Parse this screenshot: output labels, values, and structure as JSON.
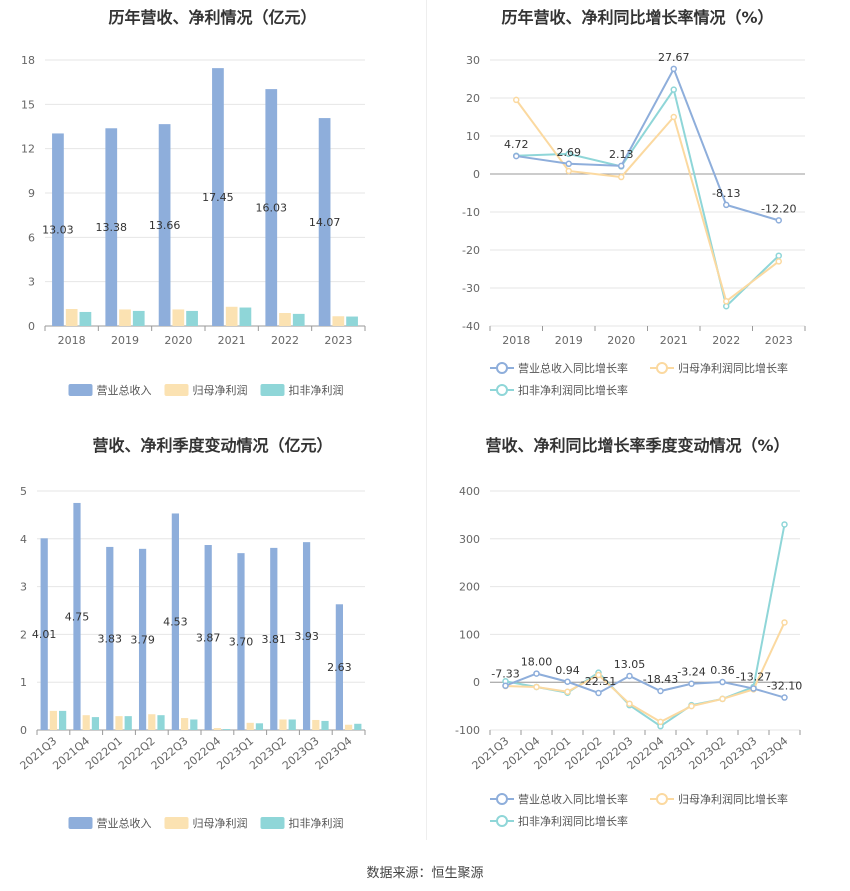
{
  "source_label": "数据来源：恒生聚源",
  "chart_data": [
    {
      "type": "bar",
      "title": "历年营收、净利情况（亿元）",
      "categories": [
        "2018",
        "2019",
        "2020",
        "2021",
        "2022",
        "2023"
      ],
      "series": [
        {
          "name": "营业总收入",
          "values": [
            13.03,
            13.38,
            13.66,
            17.45,
            16.03,
            14.07
          ],
          "color": "#8eaedb"
        },
        {
          "name": "归母净利润",
          "values": [
            1.15,
            1.12,
            1.12,
            1.3,
            0.88,
            0.66
          ],
          "color": "#fbe2b2"
        },
        {
          "name": "扣非净利润",
          "values": [
            0.95,
            1.02,
            1.02,
            1.25,
            0.82,
            0.64
          ],
          "color": "#8fd6d8"
        }
      ],
      "data_labels": [
        "13.03",
        "13.38",
        "13.66",
        "17.45",
        "16.03",
        "14.07"
      ],
      "y_ticks": [
        "0",
        "3",
        "6",
        "9",
        "12",
        "15",
        "18"
      ],
      "ylim": [
        0,
        18
      ],
      "legend": "bottom"
    },
    {
      "type": "line",
      "title": "历年营收、净利同比增长率情况（%）",
      "categories": [
        "2018",
        "2019",
        "2020",
        "2021",
        "2022",
        "2023"
      ],
      "series": [
        {
          "name": "营业总收入同比增长率",
          "values": [
            4.72,
            2.69,
            2.13,
            27.67,
            -8.13,
            -12.2
          ],
          "color": "#8eaedb"
        },
        {
          "name": "归母净利润同比增长率",
          "values": [
            19.5,
            0.8,
            -0.8,
            15.0,
            -33.5,
            -23.0
          ],
          "color": "#fbd9a0"
        },
        {
          "name": "扣非净利润同比增长率",
          "values": [
            4.8,
            5.3,
            2.0,
            22.2,
            -34.8,
            -21.5
          ],
          "color": "#8fd6d8"
        }
      ],
      "data_labels": [
        "4.72",
        "2.69",
        "2.13",
        "27.67",
        "-8.13",
        "-12.20"
      ],
      "y_ticks": [
        "-40",
        "-30",
        "-20",
        "-10",
        "0",
        "10",
        "20",
        "30"
      ],
      "ylim": [
        -40,
        30
      ],
      "legend": "bottom"
    },
    {
      "type": "bar",
      "title": "营收、净利季度变动情况（亿元）",
      "categories": [
        "2021Q3",
        "2021Q4",
        "2022Q1",
        "2022Q2",
        "2022Q3",
        "2022Q4",
        "2023Q1",
        "2023Q2",
        "2023Q3",
        "2023Q4"
      ],
      "series": [
        {
          "name": "营业总收入",
          "values": [
            4.01,
            4.75,
            3.83,
            3.79,
            4.53,
            3.87,
            3.7,
            3.81,
            3.93,
            2.63
          ],
          "color": "#8eaedb"
        },
        {
          "name": "归母净利润",
          "values": [
            0.4,
            0.31,
            0.29,
            0.33,
            0.25,
            0.04,
            0.15,
            0.22,
            0.21,
            0.11
          ],
          "color": "#fbe2b2"
        },
        {
          "name": "扣非净利润",
          "values": [
            0.4,
            0.27,
            0.29,
            0.31,
            0.22,
            0.02,
            0.14,
            0.22,
            0.19,
            0.13
          ],
          "color": "#8fd6d8"
        }
      ],
      "data_labels": [
        "4.01",
        "4.75",
        "3.83",
        "3.79",
        "4.53",
        "3.87",
        "3.70",
        "3.81",
        "3.93",
        "2.63"
      ],
      "y_ticks": [
        "0",
        "1",
        "2",
        "3",
        "4",
        "5"
      ],
      "ylim": [
        0,
        5
      ],
      "legend": "bottom"
    },
    {
      "type": "line",
      "title": "营收、净利同比增长率季度变动情况（%）",
      "categories": [
        "2021Q3",
        "2021Q4",
        "2022Q1",
        "2022Q2",
        "2022Q3",
        "2022Q4",
        "2023Q1",
        "2023Q2",
        "2023Q3",
        "2023Q4"
      ],
      "series": [
        {
          "name": "营业总收入同比增长率",
          "values": [
            -7.33,
            18.0,
            0.94,
            -22.51,
            13.05,
            -18.43,
            -3.24,
            0.36,
            -13.27,
            -32.1
          ],
          "color": "#8eaedb"
        },
        {
          "name": "归母净利润同比增长率",
          "values": [
            -8,
            -10,
            -20,
            15,
            -45,
            -83,
            -50,
            -35,
            -15,
            125
          ],
          "color": "#fbd9a0"
        },
        {
          "name": "扣非净利润同比增长率",
          "values": [
            2,
            -10,
            -22,
            20,
            -48,
            -92,
            -48,
            -35,
            -10,
            330
          ],
          "color": "#8fd6d8"
        }
      ],
      "data_labels": [
        "-7.33",
        "18.00",
        "0.94",
        "-22.51",
        "13.05",
        "-18.43",
        "-3.24",
        "0.36",
        "-13.27",
        "-32.10"
      ],
      "y_ticks": [
        "-100",
        "0",
        "100",
        "200",
        "300",
        "400"
      ],
      "ylim": [
        -100,
        400
      ],
      "legend": "bottom"
    }
  ]
}
